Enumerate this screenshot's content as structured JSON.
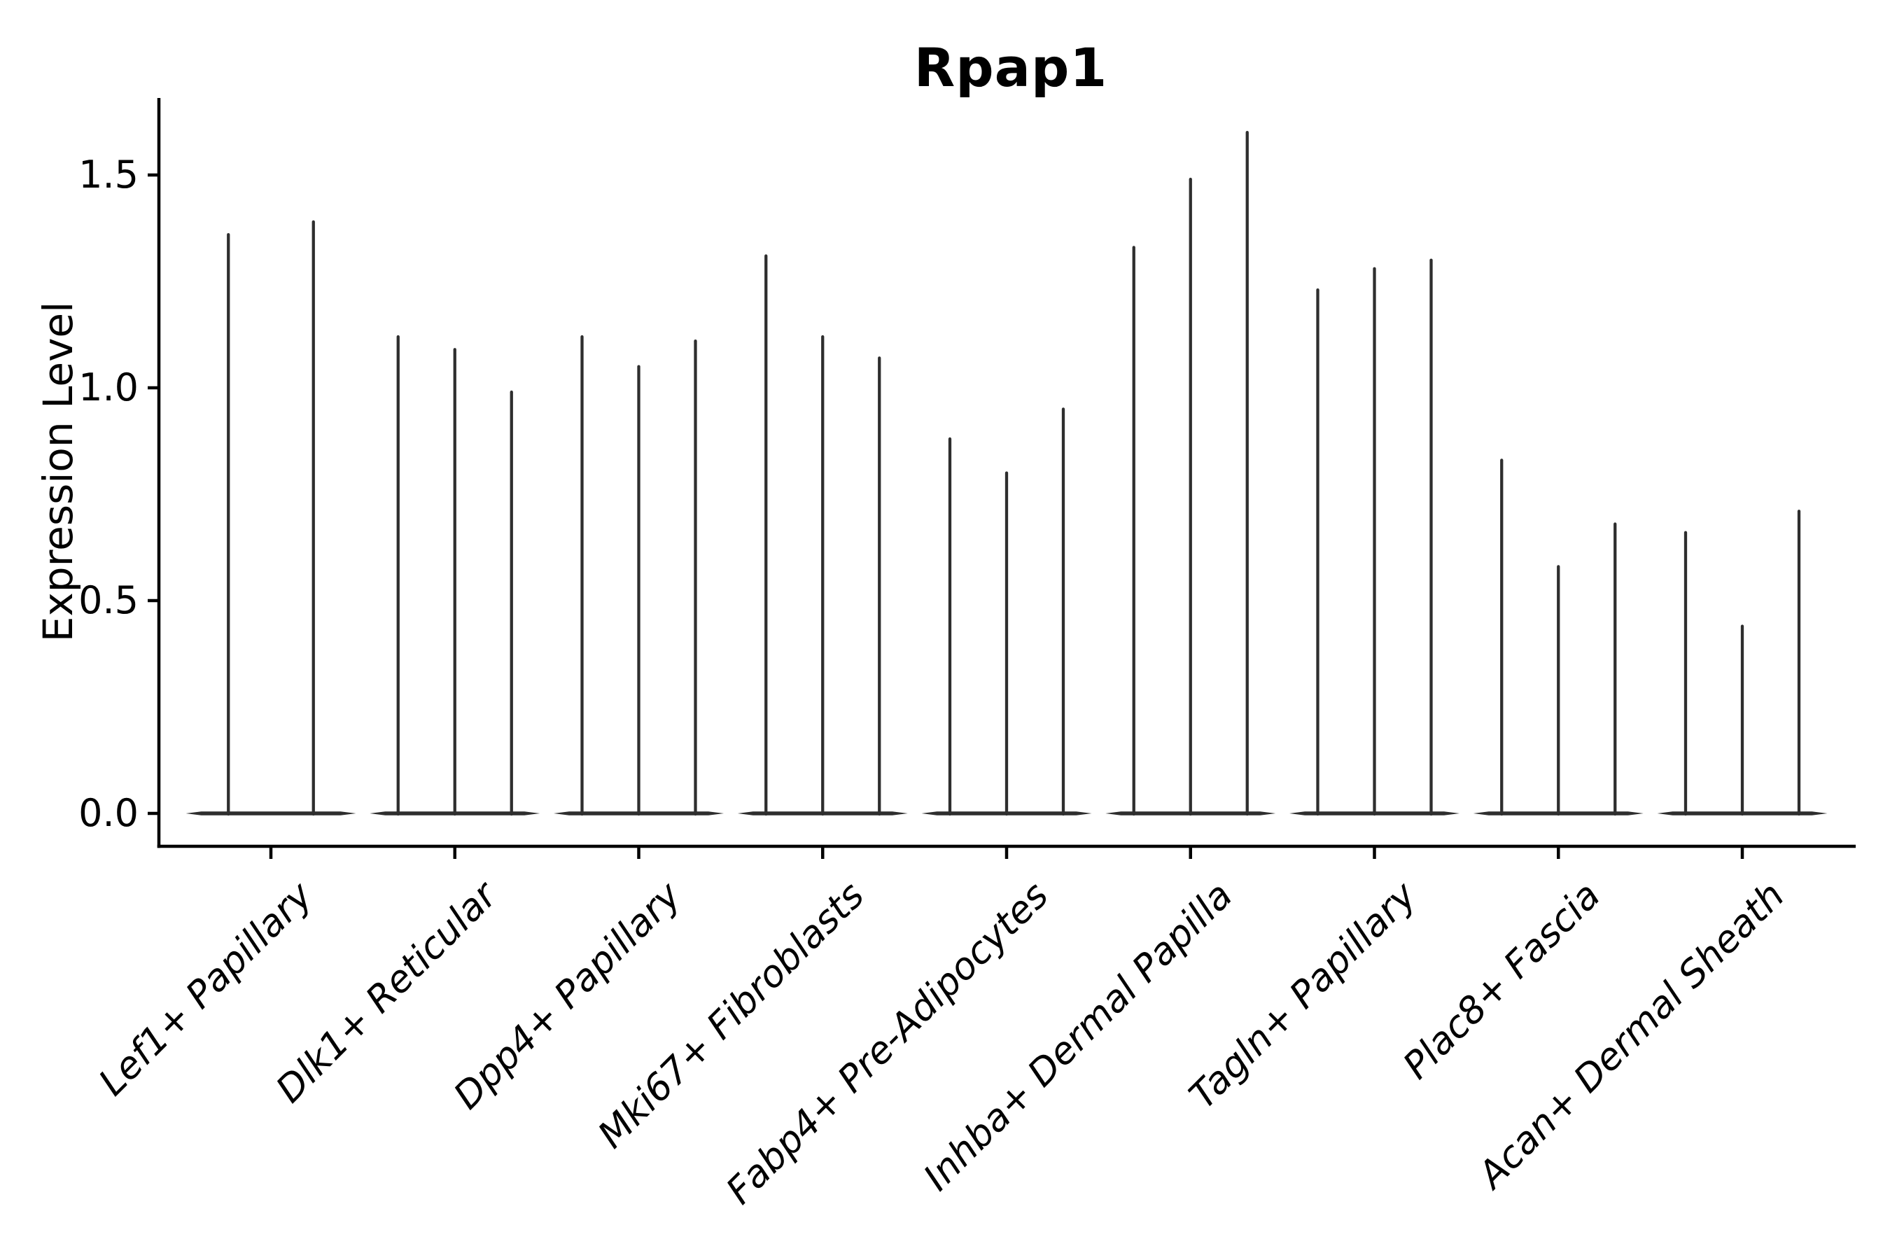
{
  "figure": {
    "title": "Rpap1"
  },
  "axes": {
    "ylabel": "Expression Level",
    "ytick_labels": [
      "0.0",
      "0.5",
      "1.0",
      "1.5"
    ]
  },
  "chart_data": {
    "type": "violin",
    "title": "Rpap1",
    "xlabel": "",
    "ylabel": "Expression Level",
    "ylim": [
      0,
      1.68
    ],
    "yticks": [
      0.0,
      0.5,
      1.0,
      1.5
    ],
    "grid": false,
    "legend_position": "none",
    "orientation": "vertical",
    "categories": [
      "Lef1+ Papillary",
      "Dlk1+ Reticular",
      "Dpp4+ Papillary",
      "Mki67+ Fibroblasts",
      "Fabp4+ Pre-Adipocytes",
      "Inhba+ Dermal Papilla",
      "Tagln+ Papillary",
      "Plac8+ Fascia",
      "Acan+ Dermal Sheath"
    ],
    "groups": [
      {
        "label": "Lef1+ Papillary",
        "violin_max_values": [
          1.36,
          1.39
        ]
      },
      {
        "label": "Dlk1+ Reticular",
        "violin_max_values": [
          1.12,
          1.09,
          0.99
        ]
      },
      {
        "label": "Dpp4+ Papillary",
        "violin_max_values": [
          1.12,
          1.05,
          1.11
        ]
      },
      {
        "label": "Mki67+ Fibroblasts",
        "violin_max_values": [
          1.31,
          1.12,
          1.07
        ]
      },
      {
        "label": "Fabp4+ Pre-Adipocytes",
        "violin_max_values": [
          0.88,
          0.8,
          0.95
        ]
      },
      {
        "label": "Inhba+ Dermal Papilla",
        "violin_max_values": [
          1.33,
          1.49,
          1.6
        ]
      },
      {
        "label": "Tagln+ Papillary",
        "violin_max_values": [
          1.23,
          1.28,
          1.3
        ]
      },
      {
        "label": "Plac8+ Fascia",
        "violin_max_values": [
          0.83,
          0.58,
          0.68
        ]
      },
      {
        "label": "Acan+ Dermal Sheath",
        "violin_max_values": [
          0.66,
          0.44,
          0.71
        ]
      }
    ],
    "style": {
      "violin_color": "#2e2e2e",
      "axis_color": "#000000",
      "background_color": "#ffffff"
    }
  }
}
